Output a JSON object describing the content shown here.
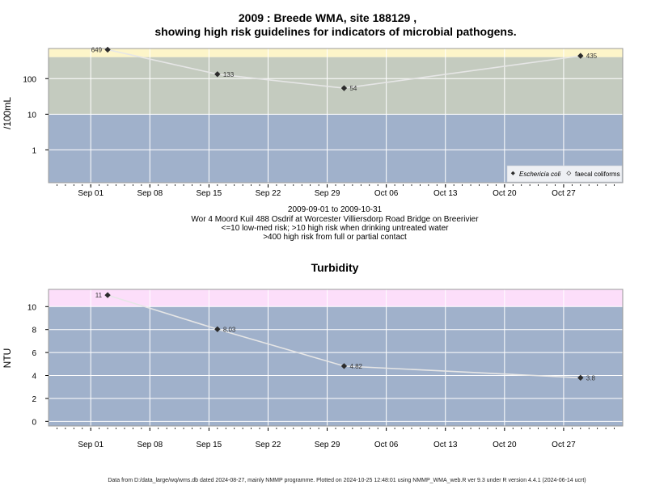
{
  "colors": {
    "band_high": "#fdf5c9",
    "band_medium": "#c4cbbf",
    "band_low": "#a0b1cb",
    "band_turb_high": "#fcdefa",
    "grid": "#ffffff",
    "line": "#e6e6e6",
    "marker": "#2b2b2b"
  },
  "header": {
    "title_line1": "2009 : Breede WMA, site 188129 ,",
    "title_line2": "showing high risk guidelines for indicators of microbial pathogens."
  },
  "captions": {
    "date_range": "2009-09-01 to 2009-10-31",
    "site_description": "Wor 4 Moord Kuil 488 Osdrif at Worcester Villiersdorp Road Bridge on Breerivier",
    "guideline_1": "<=10 low-med risk; >10 high risk when drinking untreated water",
    "guideline_2": ">400 high risk from full or partial contact"
  },
  "legend": {
    "ecoli": "Eschericia coli",
    "faecal": "faecal coliforms"
  },
  "footer": "Data from D:/data_large/wq/wms.db dated 2024-08-27, mainly NMMP programme. Plotted on 2024-10-25 12:48:01 using NMMP_WMA_web.R ver 9.3 under R version 4.4.1 (2024-06-14 ucrt)",
  "chart_data": [
    {
      "type": "line",
      "title": "",
      "xlabel": "",
      "ylabel": "/100mL",
      "y_scale": "log",
      "xlim": [
        "2009-08-27",
        "2009-11-03"
      ],
      "ylim": [
        0.12,
        700
      ],
      "x_ticks": [
        "2009-09-01",
        "2009-09-08",
        "2009-09-15",
        "2009-09-22",
        "2009-09-29",
        "2009-10-06",
        "2009-10-13",
        "2009-10-20",
        "2009-10-27"
      ],
      "x_tick_labels": [
        "Sep 01",
        "Sep 08",
        "Sep 15",
        "Sep 22",
        "Sep 29",
        "Oct 06",
        "Oct 13",
        "Oct 20",
        "Oct 27"
      ],
      "y_ticks": [
        1,
        10,
        100
      ],
      "y_tick_labels": [
        "1",
        "10",
        "100"
      ],
      "bands": [
        {
          "from": 400,
          "to": 700,
          "color_key": "band_high"
        },
        {
          "from": 10,
          "to": 400,
          "color_key": "band_medium"
        },
        {
          "from": 0.12,
          "to": 10,
          "color_key": "band_low"
        }
      ],
      "legend_position": "bottom-right",
      "series": [
        {
          "name": "Eschericia coli",
          "x": [
            "2009-09-03",
            "2009-09-16",
            "2009-10-01",
            "2009-10-29"
          ],
          "values": [
            649,
            133,
            54,
            435
          ],
          "labels": [
            "649",
            "133",
            "54",
            "435"
          ]
        }
      ]
    },
    {
      "type": "line",
      "title": "Turbidity",
      "xlabel": "",
      "ylabel": "NTU",
      "y_scale": "linear",
      "xlim": [
        "2009-08-27",
        "2009-11-03"
      ],
      "ylim": [
        -0.4,
        11.5
      ],
      "x_ticks": [
        "2009-09-01",
        "2009-09-08",
        "2009-09-15",
        "2009-09-22",
        "2009-09-29",
        "2009-10-06",
        "2009-10-13",
        "2009-10-20",
        "2009-10-27"
      ],
      "x_tick_labels": [
        "Sep 01",
        "Sep 08",
        "Sep 15",
        "Sep 22",
        "Sep 29",
        "Oct 06",
        "Oct 13",
        "Oct 20",
        "Oct 27"
      ],
      "y_ticks": [
        0,
        2,
        4,
        6,
        8,
        10
      ],
      "y_tick_labels": [
        "0",
        "2",
        "4",
        "6",
        "8",
        "10"
      ],
      "bands": [
        {
          "from": 10,
          "to": 11.5,
          "color_key": "band_turb_high"
        },
        {
          "from": -0.4,
          "to": 10,
          "color_key": "band_low"
        }
      ],
      "series": [
        {
          "name": "",
          "x": [
            "2009-09-03",
            "2009-09-16",
            "2009-10-01",
            "2009-10-29"
          ],
          "values": [
            11,
            8.03,
            4.82,
            3.8
          ],
          "labels": [
            "11",
            "8.03",
            "4.82",
            "3.8"
          ]
        }
      ]
    }
  ]
}
